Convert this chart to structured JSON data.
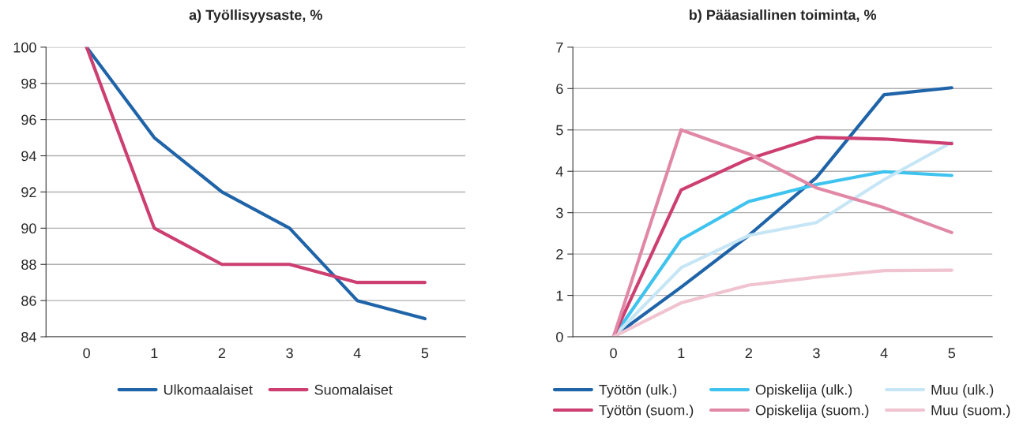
{
  "chart_data": [
    {
      "type": "line",
      "title": "a) Työllisyysaste, %",
      "categories": [
        "0",
        "1",
        "2",
        "3",
        "4",
        "5"
      ],
      "ylim": [
        84,
        100
      ],
      "yticks": [
        84,
        86,
        88,
        90,
        92,
        94,
        96,
        98,
        100
      ],
      "grid": "y",
      "legend": "bottom",
      "marker": "none",
      "line_style": "solid",
      "series": [
        {
          "name": "Ulkomaalaiset",
          "color": "#1f64a8",
          "values": [
            100,
            95,
            92,
            90,
            86,
            85
          ]
        },
        {
          "name": "Suomalaiset",
          "color": "#cc3f70",
          "values": [
            100,
            90,
            88,
            88,
            87,
            87
          ]
        }
      ]
    },
    {
      "type": "line",
      "title": "b) Pääasiallinen toiminta, %",
      "categories": [
        "0",
        "1",
        "2",
        "3",
        "4",
        "5"
      ],
      "ylim": [
        0,
        7
      ],
      "yticks": [
        0,
        1,
        2,
        3,
        4,
        5,
        6,
        7
      ],
      "grid": "y",
      "legend": "bottom",
      "marker": "none",
      "line_style": "solid",
      "series": [
        {
          "name": "Työtön (ulk.)",
          "color": "#1f64a8",
          "values": [
            0,
            1.2,
            2.45,
            3.85,
            5.85,
            6.02
          ]
        },
        {
          "name": "Opiskelija (ulk.)",
          "color": "#3ec3ef",
          "values": [
            0,
            2.35,
            3.27,
            3.68,
            3.99,
            3.9
          ]
        },
        {
          "name": "Muu (ulk.)",
          "color": "#c7e6f5",
          "values": [
            0,
            1.67,
            2.45,
            2.76,
            3.8,
            4.7
          ]
        },
        {
          "name": "Työtön (suom.)",
          "color": "#cc3f70",
          "values": [
            0,
            3.55,
            4.3,
            4.82,
            4.78,
            4.67
          ]
        },
        {
          "name": "Opiskelija (suom.)",
          "color": "#e088a5",
          "values": [
            0,
            5.0,
            4.42,
            3.6,
            3.12,
            2.52
          ]
        },
        {
          "name": "Muu (suom.)",
          "color": "#f0c3d0",
          "values": [
            0,
            0.82,
            1.25,
            1.44,
            1.6,
            1.61
          ]
        }
      ]
    }
  ]
}
